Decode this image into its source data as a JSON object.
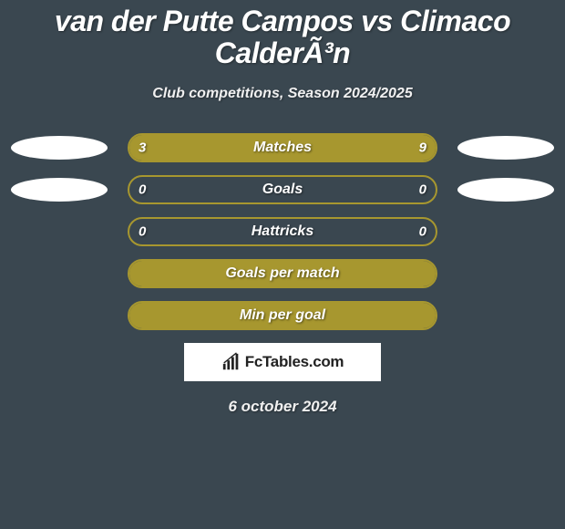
{
  "header": {
    "title": "van der Putte Campos vs Climaco CalderÃ³n",
    "subtitle": "Club competitions, Season 2024/2025"
  },
  "colors": {
    "background": "#3a4750",
    "bar_fill": "#a7972f",
    "bar_border": "#a7972f",
    "bar_empty": "#3a4750",
    "oval_left": "#ffffff",
    "oval_right": "#ffffff",
    "text": "#ffffff"
  },
  "stats": [
    {
      "label": "Matches",
      "left_value": "3",
      "right_value": "9",
      "left_pct": 25,
      "right_pct": 75,
      "show_left_oval": true,
      "show_right_oval": true
    },
    {
      "label": "Goals",
      "left_value": "0",
      "right_value": "0",
      "left_pct": 0,
      "right_pct": 0,
      "show_left_oval": true,
      "show_right_oval": true
    },
    {
      "label": "Hattricks",
      "left_value": "0",
      "right_value": "0",
      "left_pct": 0,
      "right_pct": 0,
      "show_left_oval": false,
      "show_right_oval": false
    },
    {
      "label": "Goals per match",
      "left_value": "",
      "right_value": "",
      "left_pct": 50,
      "right_pct": 50,
      "show_left_oval": false,
      "show_right_oval": false
    },
    {
      "label": "Min per goal",
      "left_value": "",
      "right_value": "",
      "left_pct": 50,
      "right_pct": 50,
      "show_left_oval": false,
      "show_right_oval": false
    }
  ],
  "branding": {
    "logo_text": "FcTables.com"
  },
  "footer": {
    "date": "6 october 2024"
  },
  "typography": {
    "title_fontsize": 32,
    "subtitle_fontsize": 16,
    "label_fontsize": 16,
    "value_fontsize": 15,
    "date_fontsize": 17
  }
}
